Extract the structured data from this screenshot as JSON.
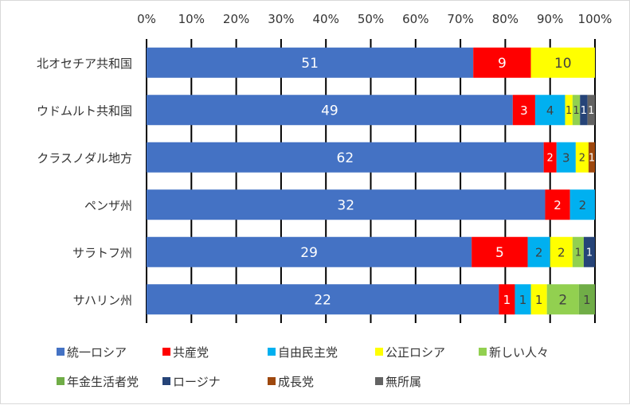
{
  "chart_data": {
    "type": "bar",
    "orientation": "horizontal",
    "stacking": "percent",
    "title": "",
    "xlabel": "",
    "ylabel": "",
    "xlim": [
      0,
      100
    ],
    "x_ticks": [
      "0%",
      "10%",
      "20%",
      "30%",
      "40%",
      "50%",
      "60%",
      "70%",
      "80%",
      "90%",
      "100%"
    ],
    "grid": true,
    "legend_position": "bottom",
    "categories": [
      "北オセチア共和国",
      "ウドムルト共和国",
      "クラスノダル地方",
      "ペンザ州",
      "サラトフ州",
      "サハリン州"
    ],
    "series": [
      {
        "name": "統一ロシア",
        "color": "#4472C4",
        "values": [
          51,
          49,
          62,
          32,
          29,
          22
        ]
      },
      {
        "name": "共産党",
        "color": "#FF0000",
        "values": [
          9,
          3,
          2,
          2,
          5,
          1
        ]
      },
      {
        "name": "自由民主党",
        "color": "#00B0F0",
        "values": [
          0,
          4,
          3,
          2,
          2,
          1
        ]
      },
      {
        "name": "公正ロシア",
        "color": "#FFFF00",
        "values": [
          10,
          1,
          2,
          0,
          2,
          1
        ]
      },
      {
        "name": "新しい人々",
        "color": "#92D050",
        "values": [
          0,
          1,
          0,
          0,
          1,
          2
        ]
      },
      {
        "name": "年金生活者党",
        "color": "#70AD47",
        "values": [
          0,
          0,
          0,
          0,
          0,
          1
        ]
      },
      {
        "name": "ロージナ",
        "color": "#264478",
        "values": [
          0,
          1,
          0,
          0,
          1,
          0
        ]
      },
      {
        "name": "成長党",
        "color": "#9E480E",
        "values": [
          0,
          0,
          1,
          0,
          0,
          0
        ]
      },
      {
        "name": "無所属",
        "color": "#636363",
        "values": [
          0,
          1,
          0,
          0,
          0,
          0
        ]
      }
    ]
  }
}
